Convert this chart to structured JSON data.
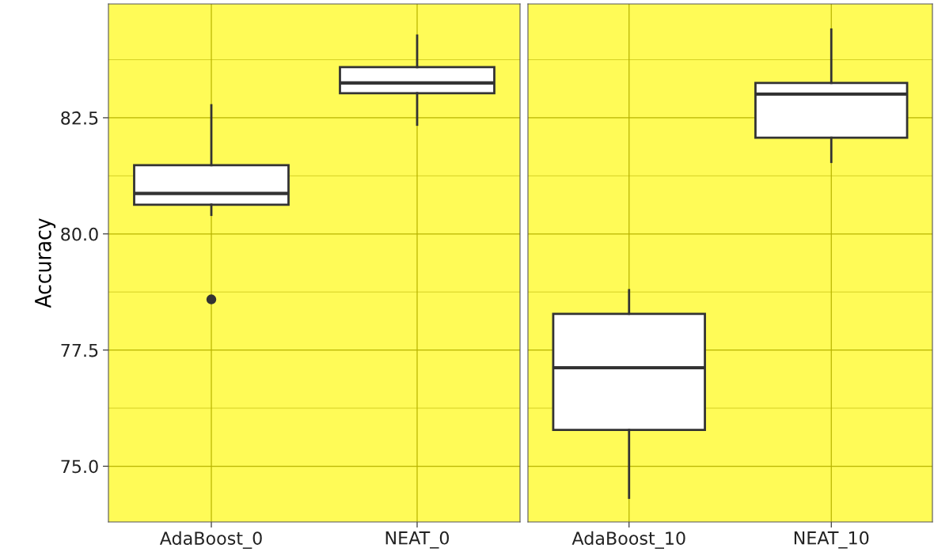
{
  "chart_data": [
    {
      "type": "box",
      "ylabel": "Accuracy",
      "categories": [
        "AdaBoost_0",
        "NEAT_0"
      ],
      "boxes": [
        {
          "low": 80.41,
          "q1": 80.63,
          "median": 80.87,
          "q3": 81.48,
          "high": 82.77,
          "outliers": [
            78.59
          ]
        },
        {
          "low": 82.35,
          "q1": 83.03,
          "median": 83.25,
          "q3": 83.59,
          "high": 84.27
        }
      ],
      "ylim": [
        73.8,
        84.95
      ],
      "yticks": [
        {
          "value": 75,
          "label": "75.0"
        },
        {
          "value": 76.25,
          "label": null
        },
        77.5,
        {
          "value": 78.75,
          "label": null
        },
        {
          "value": 80,
          "label": "80.0"
        },
        {
          "value": 81.25,
          "label": null
        },
        82.5,
        {
          "value": 83.75,
          "label": null
        }
      ],
      "grid": true
    },
    {
      "type": "box",
      "categories": [
        "AdaBoost_10",
        "NEAT_10"
      ],
      "boxes": [
        {
          "low": 74.32,
          "q1": 75.78,
          "median": 77.12,
          "q3": 78.28,
          "high": 78.79
        },
        {
          "low": 81.55,
          "q1": 82.07,
          "median": 83.01,
          "q3": 83.25,
          "high": 84.4
        }
      ],
      "ylim": [
        73.8,
        84.95
      ],
      "yticks": [
        75,
        {
          "value": 76.25,
          "label": null
        },
        77.5,
        {
          "value": 78.75,
          "label": null
        },
        80,
        {
          "value": 81.25,
          "label": null
        },
        82.5,
        {
          "value": 83.75,
          "label": null
        }
      ],
      "grid": true,
      "tick_labels": "x"
    }
  ]
}
